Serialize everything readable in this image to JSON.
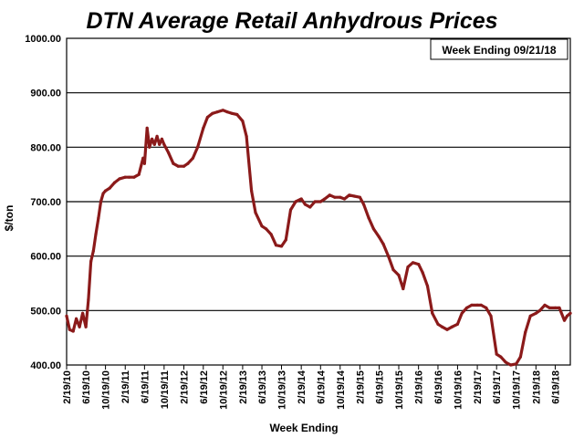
{
  "chart_data": {
    "type": "line",
    "title": "DTN Average Retail Anhydrous Prices",
    "badge": "Week Ending 09/21/18",
    "xlabel": "Week Ending",
    "ylabel": "$/ton",
    "ylim": [
      400,
      1000
    ],
    "yticks": [
      "400.00",
      "500.00",
      "600.00",
      "700.00",
      "800.00",
      "900.00",
      "1000.00"
    ],
    "xticks": [
      "2/19/10",
      "6/19/10",
      "10/19/10",
      "2/19/11",
      "6/19/11",
      "10/19/11",
      "2/19/12",
      "6/19/12",
      "10/19/12",
      "2/19/13",
      "6/19/13",
      "10/19/13",
      "2/19/14",
      "6/19/14",
      "10/19/14",
      "2/19/15",
      "6/19/15",
      "10/19/15",
      "2/19/16",
      "6/19/16",
      "10/19/16",
      "2/19/17",
      "6/19/17",
      "10/19/17",
      "2/19/18",
      "6/19/18"
    ],
    "grid": "horizontal",
    "line_color": "#8b1a1a",
    "series": [
      {
        "x": [
          "2010-02-19",
          "2010-03-10",
          "2010-04-01",
          "2010-04-20",
          "2010-05-10",
          "2010-05-30",
          "2010-06-19",
          "2010-07-05",
          "2010-07-20",
          "2010-08-05",
          "2010-08-20",
          "2010-09-05",
          "2010-09-20",
          "2010-10-05",
          "2010-10-19",
          "2010-11-15",
          "2010-12-15",
          "2011-01-15",
          "2011-02-19",
          "2011-03-15",
          "2011-04-15",
          "2011-05-15",
          "2011-06-10",
          "2011-06-19",
          "2011-07-05",
          "2011-07-20",
          "2011-08-05",
          "2011-08-20",
          "2011-09-05",
          "2011-09-20",
          "2011-10-05",
          "2011-10-19",
          "2011-11-15",
          "2011-12-15",
          "2012-01-15",
          "2012-02-19",
          "2012-03-15",
          "2012-04-15",
          "2012-05-15",
          "2012-06-19",
          "2012-07-15",
          "2012-08-15",
          "2012-09-15",
          "2012-10-19",
          "2012-11-15",
          "2012-12-15",
          "2013-01-15",
          "2013-02-19",
          "2013-03-15",
          "2013-04-15",
          "2013-05-10",
          "2013-06-19",
          "2013-07-15",
          "2013-08-15",
          "2013-09-15",
          "2013-10-19",
          "2013-11-15",
          "2013-12-15",
          "2014-01-15",
          "2014-02-19",
          "2014-03-15",
          "2014-04-15",
          "2014-05-15",
          "2014-06-19",
          "2014-07-15",
          "2014-08-15",
          "2014-09-15",
          "2014-10-19",
          "2014-11-15",
          "2014-12-15",
          "2015-01-15",
          "2015-02-19",
          "2015-03-15",
          "2015-04-15",
          "2015-05-15",
          "2015-06-19",
          "2015-07-15",
          "2015-08-15",
          "2015-09-15",
          "2015-10-19",
          "2015-11-15",
          "2015-12-15",
          "2016-01-15",
          "2016-02-19",
          "2016-03-15",
          "2016-04-15",
          "2016-05-15",
          "2016-06-19",
          "2016-07-15",
          "2016-08-15",
          "2016-09-15",
          "2016-10-19",
          "2016-11-15",
          "2016-12-15",
          "2017-01-15",
          "2017-02-19",
          "2017-03-15",
          "2017-04-15",
          "2017-05-15",
          "2017-06-19",
          "2017-07-15",
          "2017-08-15",
          "2017-09-15",
          "2017-10-19",
          "2017-11-15",
          "2017-12-15",
          "2018-01-15",
          "2018-02-19",
          "2018-03-15",
          "2018-04-15",
          "2018-05-15",
          "2018-06-19",
          "2018-07-15",
          "2018-08-15",
          "2018-09-01",
          "2018-09-21"
        ],
        "y": [
          490,
          465,
          462,
          485,
          470,
          495,
          470,
          520,
          590,
          610,
          640,
          670,
          700,
          715,
          720,
          725,
          735,
          742,
          745,
          745,
          745,
          750,
          780,
          770,
          835,
          800,
          815,
          805,
          820,
          805,
          815,
          805,
          790,
          770,
          765,
          765,
          770,
          780,
          800,
          835,
          855,
          862,
          865,
          868,
          865,
          862,
          860,
          848,
          820,
          720,
          680,
          655,
          650,
          640,
          620,
          618,
          630,
          685,
          700,
          705,
          695,
          690,
          700,
          700,
          705,
          712,
          708,
          708,
          705,
          712,
          710,
          708,
          695,
          670,
          650,
          635,
          622,
          600,
          575,
          565,
          540,
          580,
          588,
          585,
          570,
          545,
          495,
          475,
          470,
          465,
          470,
          475,
          495,
          505,
          510,
          510,
          510,
          505,
          490,
          420,
          415,
          405,
          400,
          402,
          415,
          460,
          490,
          495,
          500,
          510,
          505,
          505,
          505,
          482,
          490,
          495
        ]
      }
    ]
  }
}
